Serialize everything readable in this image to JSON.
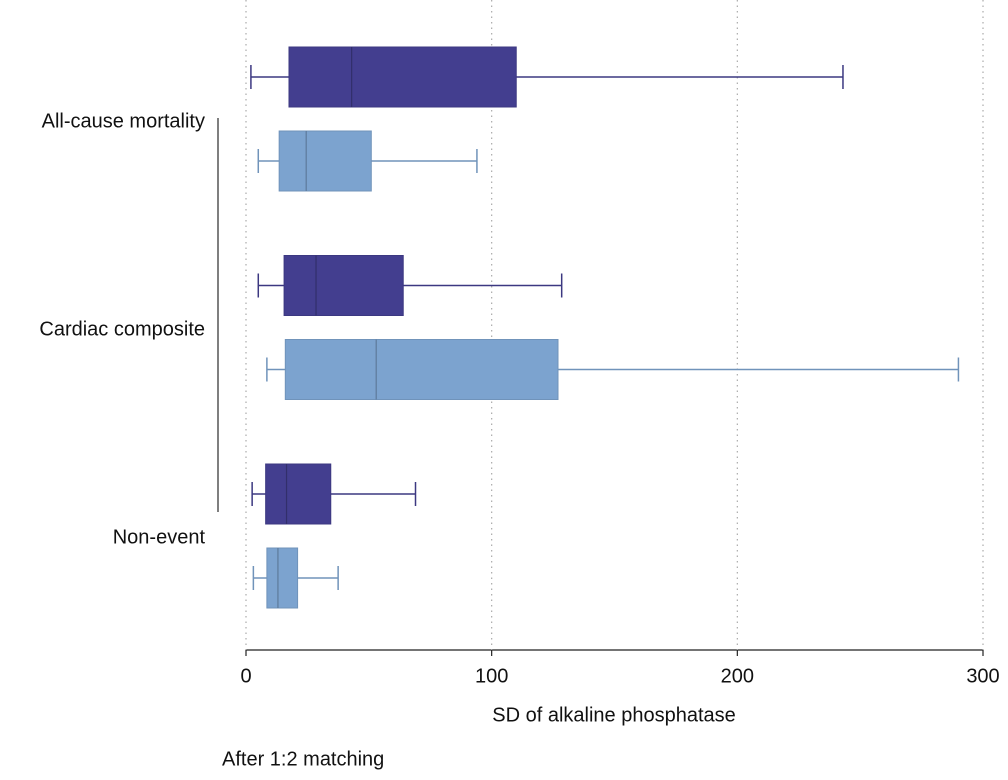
{
  "chart_data": {
    "type": "box",
    "orientation": "horizontal",
    "categories": [
      "All-cause mortality",
      "Cardiac composite",
      "Non-event"
    ],
    "x_label": "SD of alkaline phosphatase",
    "note": "After 1:2 matching",
    "xlim": [
      0,
      300
    ],
    "xticks": [
      0,
      100,
      200,
      300
    ],
    "grid": true,
    "series": [
      {
        "color": "#433e8f",
        "boxes": [
          {
            "min": 2,
            "q1": 17.5,
            "median": 43,
            "q3": 110,
            "max": 243
          },
          {
            "min": 5,
            "q1": 15.5,
            "median": 28.5,
            "q3": 64,
            "max": 128.5
          },
          {
            "min": 2.5,
            "q1": 8,
            "median": 16.5,
            "q3": 34.5,
            "max": 69
          }
        ]
      },
      {
        "color": "#7ca3cf",
        "boxes": [
          {
            "min": 5,
            "q1": 13.5,
            "median": 24.5,
            "q3": 51,
            "max": 94
          },
          {
            "min": 8.5,
            "q1": 16,
            "median": 53,
            "q3": 127,
            "max": 290
          },
          {
            "min": 3,
            "q1": 8.5,
            "median": 13,
            "q3": 21,
            "max": 37.5
          }
        ]
      }
    ]
  }
}
